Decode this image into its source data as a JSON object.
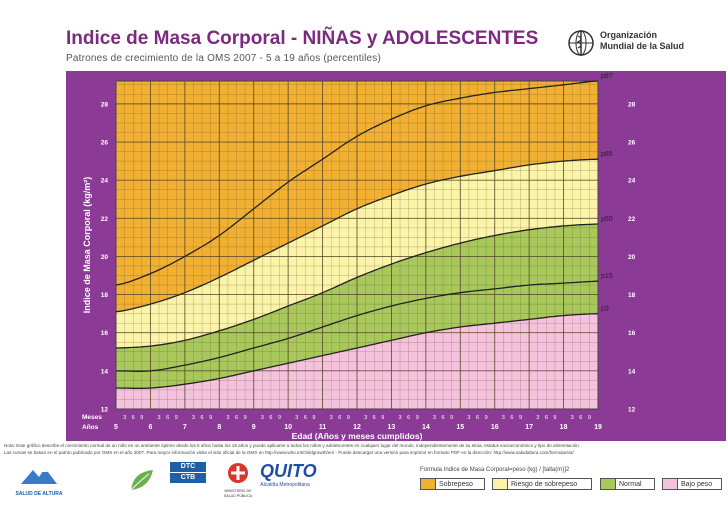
{
  "header": {
    "title": "Indice de Masa Corporal - NIÑAS y  ADOLESCENTES",
    "subtitle": "Patrones de crecimiento de la OMS 2007 - 5 a 19 años (percentiles)"
  },
  "who": {
    "name_line1": "Organización",
    "name_line2": "Mundial de la Salud"
  },
  "colors": {
    "overweight": "#f2b032",
    "risk": "#faf3a8",
    "normal": "#a8c85c",
    "underweight": "#f5c2dd",
    "panel": "#8b3a96",
    "grid": "#5a4a2a"
  },
  "chart_data": {
    "type": "line",
    "title": "Indice de Masa Corporal - NIÑAS y  ADOLESCENTES",
    "xlabel": "Edad (Años y meses cumplidos)",
    "ylabel": "Indice de Masa Corporal (kg/m²)",
    "xlim": [
      5,
      19
    ],
    "ylim": [
      12,
      29.2
    ],
    "y_ticks": [
      12,
      14,
      16,
      18,
      20,
      22,
      24,
      26,
      28
    ],
    "x_ticks": [
      5,
      6,
      7,
      8,
      9,
      10,
      11,
      12,
      13,
      14,
      15,
      16,
      17,
      18,
      19
    ],
    "month_ticks": [
      "3",
      "6",
      "9"
    ],
    "row_label_months": "Meses",
    "row_label_years": "Años",
    "x": [
      5,
      6,
      7,
      8,
      9,
      10,
      11,
      12,
      13,
      14,
      15,
      16,
      17,
      18,
      19
    ],
    "series": [
      {
        "name": "p97",
        "values": [
          18.5,
          19.1,
          20.0,
          21.1,
          22.5,
          23.9,
          25.1,
          26.3,
          27.2,
          27.9,
          28.3,
          28.6,
          28.8,
          29.0,
          29.2
        ]
      },
      {
        "name": "p85",
        "values": [
          17.1,
          17.5,
          18.1,
          18.9,
          19.8,
          20.7,
          21.6,
          22.5,
          23.2,
          23.8,
          24.2,
          24.5,
          24.8,
          25.0,
          25.1
        ]
      },
      {
        "name": "p50",
        "values": [
          15.2,
          15.3,
          15.6,
          16.1,
          16.7,
          17.4,
          18.1,
          18.9,
          19.6,
          20.2,
          20.7,
          21.1,
          21.4,
          21.6,
          21.7
        ]
      },
      {
        "name": "p15",
        "values": [
          14.0,
          14.0,
          14.3,
          14.7,
          15.2,
          15.7,
          16.3,
          16.9,
          17.4,
          17.8,
          18.1,
          18.3,
          18.5,
          18.6,
          18.7
        ]
      },
      {
        "name": "p3",
        "values": [
          13.1,
          13.1,
          13.3,
          13.6,
          14.0,
          14.4,
          14.8,
          15.2,
          15.6,
          16.0,
          16.3,
          16.5,
          16.7,
          16.9,
          17.0
        ]
      }
    ]
  },
  "notes": {
    "line1": "Nota: Este gráfico describe el crecimiento normal de un niño en un ambiente óptimo desde los 5 años hasta los 19 años y puede aplicarse a todos los niños y adolescentes en cualquier lugar del mundo, independientemente de su etnia, estatus socioeconómico y tipo de alimentación.",
    "line2": "Las curvas se basan en el patrón publicado por OMS en el año 2007. Para mayor información visite el sitio oficial de la OMS en http://www.who.int/childgrowth/en/ - Puede descargar una versión para imprimir en formato PDF en la dirección: http://www.saludaltura.com/formularios/"
  },
  "logos": {
    "salud_altura": "SALUD DE ALTURA",
    "dtc": "DTC",
    "ctb": "CTB",
    "ministerio": "MINISTERIO DE SALUD PÚBLICA",
    "quito": "QUITO",
    "alcaldia": "Alcaldía Metropolitana"
  },
  "formula": "Formula Indice de Masa Corporal=peso (kg) / [talla(m)]2",
  "legend": {
    "overweight": "Sobrepeso",
    "risk": "Riesgo de sobrepeso",
    "normal": "Normal",
    "underweight": "Bajo peso"
  }
}
